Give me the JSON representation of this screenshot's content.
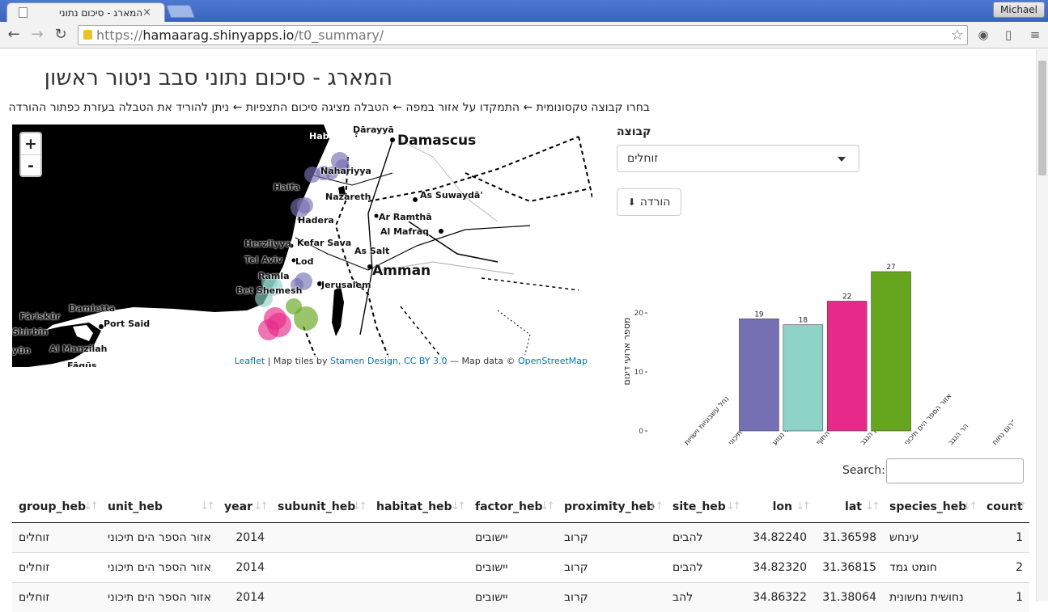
{
  "browser": {
    "tab_title": "המארג - סיכום נתוני",
    "profile_name": "Michael",
    "url_scheme": "https://",
    "url_host": "hamaarag.shinyapps.io",
    "url_path": "/t0_summary/"
  },
  "page": {
    "title": "המארג - סיכום נתוני סבב ניטור ראשון",
    "instructions": "בחרו קבוצה טקסונומית ← התמקדו על אזור במפה ← הטבלה מציגה סיכום התצפיות ← ניתן להוריד את הטבלה בעזרת כפתור ההורדה"
  },
  "map": {
    "zoom_in": "+",
    "zoom_out": "-",
    "attribution_leaflet": "Leaflet",
    "attribution_mid": " | Map tiles by ",
    "attribution_stamen": "Stamen Design, CC BY 3.0",
    "attribution_data": " — Map data © ",
    "attribution_osm": "OpenStreetMap",
    "places": {
      "damascus": "Damascus",
      "darayya": "Dārayyā",
      "habbouch": "Habbouch",
      "nahariyya": "Nahariyya",
      "haifa": "Haifa",
      "nazareth": "Nazareth",
      "as_suwayda": "As Suwaydā'",
      "hadera": "Hadera",
      "ar_ramtha": "Ar Ramthā",
      "al_mafraq": "Al Mafraq",
      "herzliyya": "Herzliyya",
      "kefar_sava": "Kefar Sava",
      "as_salt": "As Salt",
      "tel_aviv": "Tel Aviv",
      "lod": "Lod",
      "amman": "Amman",
      "ramla": "Ramla",
      "bet_shemesh": "Bet Shemesh",
      "jerusalem": "Jerusalem",
      "damietta": "Damietta",
      "fariskur": "Fāriskūr",
      "port_said": "Port Said",
      "shirbin": "Shirbīn",
      "al_manzilah": "Al Manzilah",
      "yun": "yūn",
      "faqus": "Fāqūs"
    },
    "marker_colors": {
      "purple": "#7570b3",
      "teal": "#8ed3c7",
      "pink": "#e7298a",
      "green": "#66a61e"
    }
  },
  "controls": {
    "group_label": "קבוצה",
    "group_selected": "זוחלים",
    "download_label": "הורדה",
    "download_icon": "download-icon"
  },
  "chart_data": {
    "type": "bar",
    "ylabel": "מספר ארועי דיגום",
    "ylim": [
      0,
      27
    ],
    "yticks": [
      0,
      10,
      20
    ],
    "categories": [
      "נחל עשבוניות וישויות",
      "חרש ים תיכוני",
      "יער מחטני נטוע",
      "חולות מישור החוף",
      "אזור לס בצפון הנגב",
      "אזור הספר הים תיכוני",
      "הר הנגב",
      "דרום נחוח"
    ],
    "values": [
      0,
      0,
      19,
      18,
      22,
      27,
      0,
      0
    ],
    "colors": [
      "#7570b3",
      "#8ed3c7",
      "#7570b3",
      "#8ed3c7",
      "#e7298a",
      "#66a61e",
      "#cccccc",
      "#cccccc"
    ]
  },
  "table": {
    "search_label": "Search:",
    "columns": [
      "group_heb",
      "unit_heb",
      "year",
      "subunit_heb",
      "habitat_heb",
      "factor_heb",
      "proximity_heb",
      "site_heb",
      "lon",
      "lat",
      "species_heb",
      "count"
    ],
    "rows": [
      [
        "זוחלים",
        "אזור הספר הים תיכוני",
        "2014",
        "",
        "",
        "יישובים",
        "קרוב",
        "להבים",
        "34.82240",
        "31.36598",
        "עינחש",
        "1"
      ],
      [
        "זוחלים",
        "אזור הספר הים תיכוני",
        "2014",
        "",
        "",
        "יישובים",
        "קרוב",
        "להבים",
        "34.82320",
        "31.36815",
        "חומט גמד",
        "2"
      ],
      [
        "זוחלים",
        "אזור הספר הים תיכוני",
        "2014",
        "",
        "",
        "יישובים",
        "קרוב",
        "להב",
        "34.86322",
        "31.38064",
        "נחושית נחשונית",
        "1"
      ]
    ]
  }
}
